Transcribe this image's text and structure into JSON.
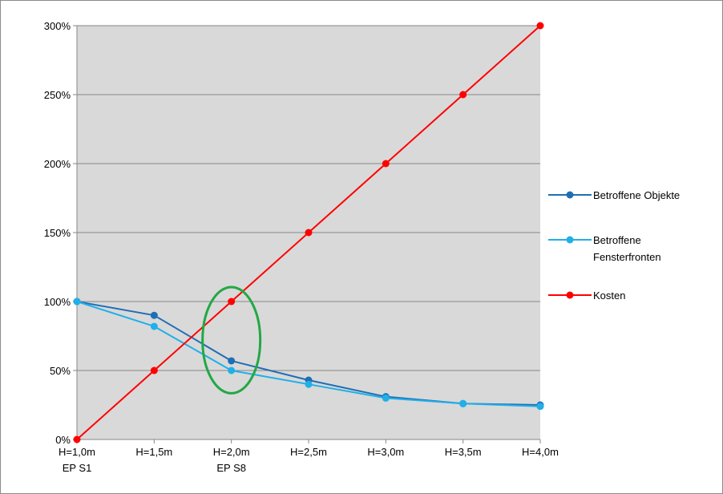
{
  "chart_data": {
    "type": "line",
    "title": "",
    "xlabel": "",
    "ylabel": "",
    "categories": [
      "H=1,0m",
      "H=1,5m",
      "H=2,0m",
      "H=2,5m",
      "H=3,0m",
      "H=3,5m",
      "H=4,0m"
    ],
    "category_sublabels": [
      "EP S1",
      "",
      "EP S8",
      "",
      "",
      "",
      ""
    ],
    "y_ticks": [
      "0%",
      "50%",
      "100%",
      "150%",
      "200%",
      "250%",
      "300%"
    ],
    "ylim": [
      0,
      300
    ],
    "y_unit": "%",
    "grid": "horizontal",
    "plot_background": "#d9d9d9",
    "legend_position": "right",
    "series": [
      {
        "name": "Betroffene Objekte",
        "legend_lines": [
          "Betroffene Objekte"
        ],
        "color": "#1f6eb5",
        "values": [
          100,
          90,
          57,
          43,
          31,
          26,
          25
        ]
      },
      {
        "name": "Betroffene Fensterfronten",
        "legend_lines": [
          "Betroffene",
          "Fensterfronten"
        ],
        "color": "#1fb0e8",
        "values": [
          100,
          82,
          50,
          40,
          30,
          26,
          24
        ]
      },
      {
        "name": "Kosten",
        "legend_lines": [
          "Kosten"
        ],
        "color": "#ff0000",
        "values": [
          0,
          50,
          100,
          150,
          200,
          250,
          300
        ]
      }
    ],
    "annotations": [
      {
        "type": "ellipse",
        "category": "H=2,0m",
        "y_center": 72,
        "y_span": [
          35,
          112
        ],
        "color": "#22a845"
      }
    ]
  }
}
